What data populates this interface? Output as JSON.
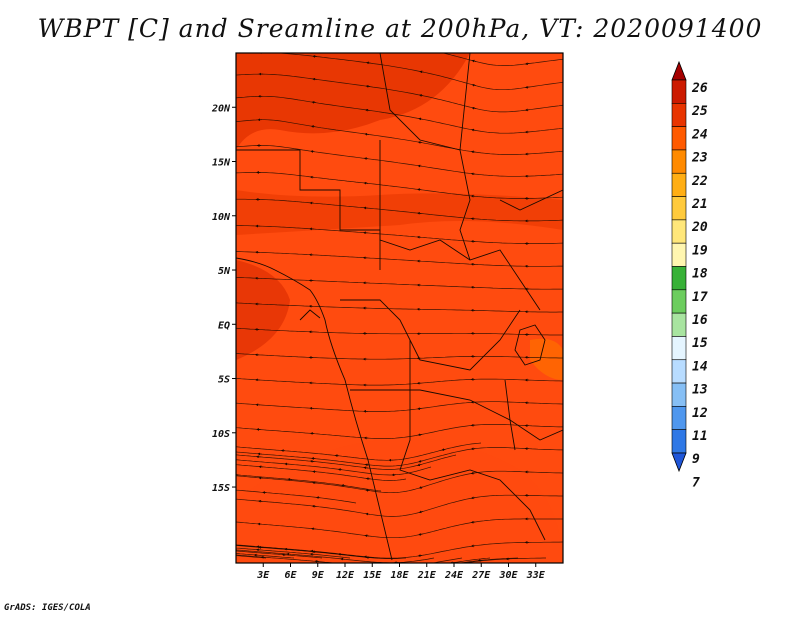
{
  "title": "WBPT [C] and Sreamline at 200hPa, VT: 2020091400",
  "footer": "GrADS: IGES/COLA",
  "map": {
    "lon_range": [
      0,
      36
    ],
    "lat_range": [
      -22,
      25
    ],
    "lon_ticks": [
      "3E",
      "6E",
      "9E",
      "12E",
      "15E",
      "18E",
      "21E",
      "24E",
      "27E",
      "30E",
      "33E"
    ],
    "lat_ticks": [
      "20N",
      "15N",
      "10N",
      "5N",
      "EQ",
      "5S",
      "10S",
      "15S"
    ],
    "field": "WBPT",
    "units": "C",
    "level": "200hPa",
    "valid_time": "2020091400",
    "dominant_color": "#ff3a0a"
  },
  "colorbar": {
    "labels": [
      "26",
      "25",
      "24",
      "23",
      "22",
      "21",
      "20",
      "19",
      "18",
      "17",
      "16",
      "15",
      "14",
      "13",
      "12",
      "11",
      "9",
      "7"
    ],
    "colors": [
      "#a50000",
      "#cc1a00",
      "#e83400",
      "#ff5a00",
      "#ff8a00",
      "#ffae14",
      "#ffca3c",
      "#ffe77a",
      "#fff6b0",
      "#37b137",
      "#6ccd5e",
      "#a8e4a0",
      "#e5f5ff",
      "#b8dcff",
      "#86bff5",
      "#4f97ee",
      "#2f78e6",
      "#1f56d8"
    ]
  }
}
